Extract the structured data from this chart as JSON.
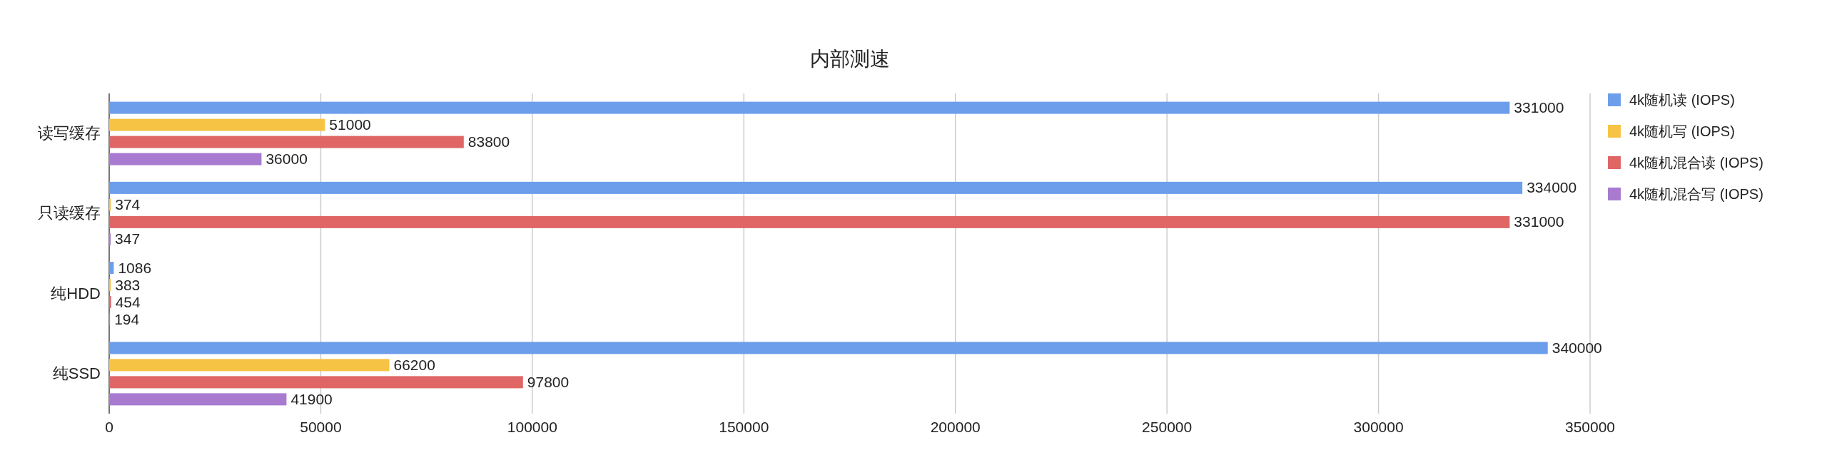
{
  "chart_data": {
    "type": "bar",
    "orientation": "horizontal",
    "title": "内部测速",
    "categories": [
      "读写缓存",
      "只读缓存",
      "纯HDD",
      "纯SSD"
    ],
    "series": [
      {
        "name": "4k随机读 (IOPS)",
        "color": "#6d9eeb",
        "values": [
          331000,
          334000,
          1086,
          340000
        ]
      },
      {
        "name": "4k随机写 (IOPS)",
        "color": "#f6c344",
        "values": [
          51000,
          374,
          383,
          66200
        ]
      },
      {
        "name": "4k随机混合读 (IOPS)",
        "color": "#e06666",
        "values": [
          83800,
          331000,
          454,
          97800
        ]
      },
      {
        "name": "4k随机混合写 (IOPS)",
        "color": "#a87bd0",
        "values": [
          36000,
          347,
          194,
          41900
        ]
      }
    ],
    "xlim": [
      0,
      350000
    ],
    "xticks": [
      0,
      50000,
      100000,
      150000,
      200000,
      250000,
      300000,
      350000
    ],
    "grid": "x",
    "legend": "right",
    "data_labels": true
  }
}
